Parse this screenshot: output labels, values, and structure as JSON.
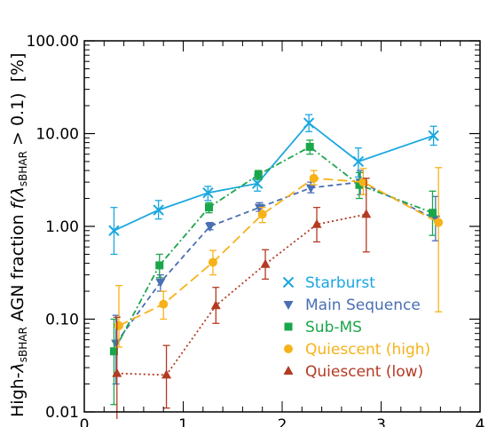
{
  "chart_data": {
    "type": "line",
    "ylabel": "High-λsBHAR AGN fraction  f(λsBHAR > 0.1)  [%]",
    "ylabel_parts": {
      "high": "High-",
      "lambda": "λ",
      "sub": "sBHAR",
      "main": " AGN fraction  ",
      "f_expr": "f(λ",
      "f_sub": "sBHAR",
      "f_tail": " > 0.1)",
      "unit": "[%]"
    },
    "y_scale": "log",
    "ylim": [
      0.01,
      100
    ],
    "xlim": [
      0,
      4
    ],
    "y_ticks": [
      "0.01",
      "0.10",
      "1.00",
      "10.00",
      "100.00"
    ],
    "y_tick_values": [
      0.01,
      0.1,
      1,
      10,
      100
    ],
    "x_ticks": [
      "0",
      "1",
      "2",
      "3",
      "4"
    ],
    "x_tick_values": [
      0,
      1,
      2,
      3,
      4
    ],
    "legend_position": "bottom-right",
    "series": [
      {
        "name": "Starburst",
        "color": "#1aa7e0",
        "marker": "x",
        "line": "solid",
        "x": [
          0.3,
          0.75,
          1.25,
          1.75,
          2.27,
          2.77,
          3.53
        ],
        "y": [
          0.9,
          1.5,
          2.3,
          2.9,
          13.0,
          5.0,
          9.5
        ],
        "err_low": [
          0.5,
          1.2,
          1.9,
          2.4,
          10.5,
          3.4,
          7.5
        ],
        "err_high": [
          1.6,
          1.9,
          2.7,
          3.6,
          16.0,
          7.0,
          12.0
        ]
      },
      {
        "name": "Main Sequence",
        "color": "#4a6fb5",
        "marker": "triangle-down",
        "line": "dashed",
        "x": [
          0.32,
          0.77,
          1.27,
          1.77,
          2.29,
          2.79,
          3.55
        ],
        "y": [
          0.055,
          0.25,
          1.0,
          1.6,
          2.6,
          3.0,
          1.2
        ],
        "err_low": [
          0.02,
          0.2,
          0.92,
          1.45,
          2.3,
          2.2,
          0.7
        ],
        "err_high": [
          0.11,
          0.3,
          1.1,
          1.8,
          3.0,
          4.0,
          2.1
        ]
      },
      {
        "name": "Sub-MS",
        "color": "#1aa64a",
        "marker": "square",
        "line": "dashdot",
        "x": [
          0.3,
          0.76,
          1.26,
          1.76,
          2.28,
          2.78,
          3.52
        ],
        "y": [
          0.045,
          0.38,
          1.6,
          3.6,
          7.2,
          2.8,
          1.4
        ],
        "err_low": [
          0.012,
          0.28,
          1.4,
          3.2,
          6.0,
          2.0,
          0.8
        ],
        "err_high": [
          0.1,
          0.5,
          1.8,
          4.0,
          8.5,
          3.8,
          2.4
        ]
      },
      {
        "name": "Quiescent (high)",
        "color": "#f7b219",
        "marker": "circle",
        "line": "longdash",
        "x": [
          0.35,
          0.8,
          1.3,
          1.8,
          2.32,
          2.82,
          3.58
        ],
        "y": [
          0.085,
          0.145,
          0.41,
          1.35,
          3.3,
          3.0,
          1.1
        ],
        "err_low": [
          0.05,
          0.1,
          0.3,
          1.1,
          2.8,
          2.2,
          0.12
        ],
        "err_high": [
          0.23,
          0.2,
          0.55,
          1.6,
          4.0,
          4.2,
          4.3
        ]
      },
      {
        "name": "Quiescent (low)",
        "color": "#b43a22",
        "marker": "triangle-up",
        "line": "dotted",
        "x": [
          0.33,
          0.83,
          1.33,
          1.83,
          2.35,
          2.85
        ],
        "y": [
          0.026,
          0.025,
          0.14,
          0.39,
          1.05,
          1.35
        ],
        "err_low": [
          0.007,
          0.011,
          0.09,
          0.27,
          0.68,
          0.53
        ],
        "err_high": [
          0.105,
          0.052,
          0.22,
          0.56,
          1.6,
          3.3
        ]
      }
    ]
  }
}
